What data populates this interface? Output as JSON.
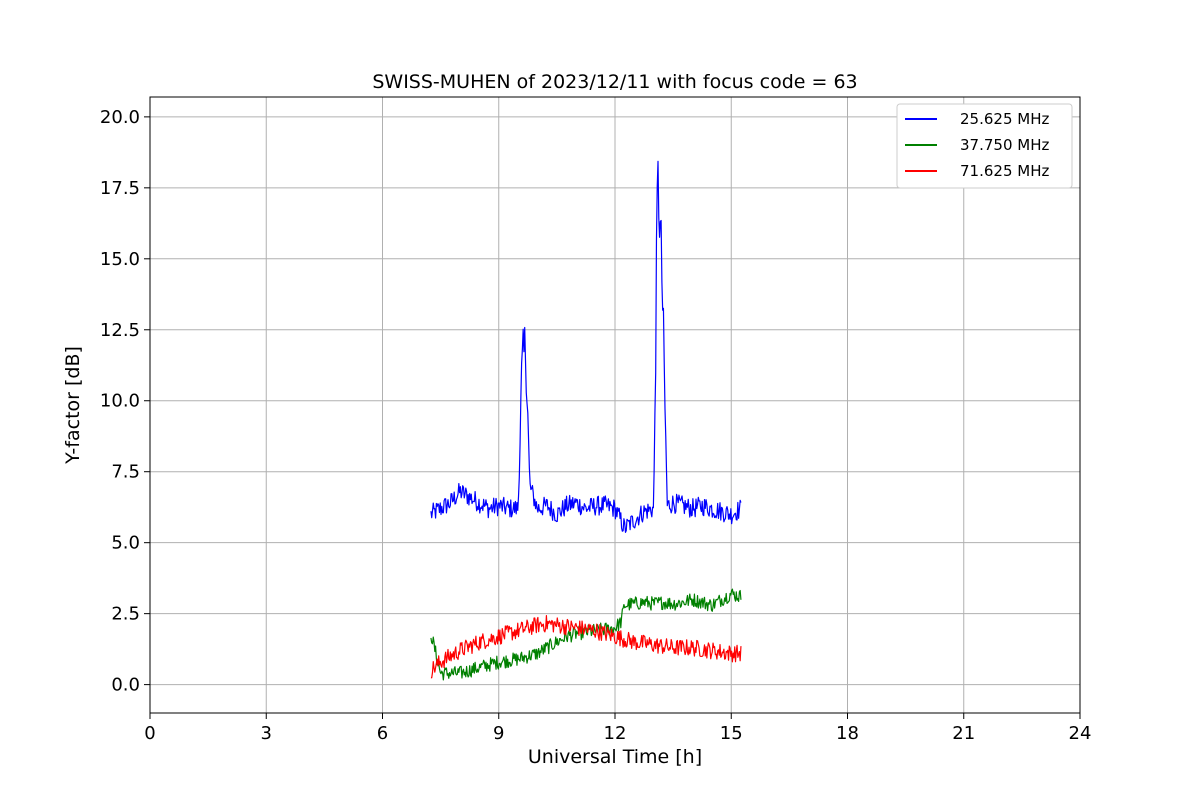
{
  "chart_data": {
    "type": "line",
    "title": "SWISS-MUHEN of 2023/12/11 with focus code = 63",
    "xlabel": "Universal Time [h]",
    "ylabel": "Y-factor [dB]",
    "xlim": [
      0,
      24
    ],
    "ylim": [
      -1.0,
      20.7
    ],
    "x_ticks": [
      0,
      3,
      6,
      9,
      12,
      15,
      18,
      21,
      24
    ],
    "x_tick_labels": [
      "0",
      "3",
      "6",
      "9",
      "12",
      "15",
      "18",
      "21",
      "24"
    ],
    "y_ticks": [
      0.0,
      2.5,
      5.0,
      7.5,
      10.0,
      12.5,
      15.0,
      17.5,
      20.0
    ],
    "y_tick_labels": [
      "0.0",
      "2.5",
      "5.0",
      "7.5",
      "10.0",
      "12.5",
      "15.0",
      "17.5",
      "20.0"
    ],
    "grid": true,
    "legend_position": "top-right",
    "series": [
      {
        "name": "25.625 MHz",
        "color": "#0000ff",
        "x": [
          7.25,
          7.5,
          7.75,
          8.0,
          8.25,
          8.5,
          8.75,
          9.0,
          9.25,
          9.5,
          9.6,
          9.7,
          9.8,
          10.0,
          10.25,
          10.5,
          10.75,
          11.0,
          11.25,
          11.5,
          11.75,
          12.0,
          12.25,
          12.5,
          12.75,
          13.0,
          13.1,
          13.2,
          13.35,
          13.5,
          13.75,
          14.0,
          14.25,
          14.5,
          14.75,
          15.0,
          15.25
        ],
        "y": [
          6.0,
          6.2,
          6.4,
          6.8,
          6.6,
          6.4,
          6.2,
          6.3,
          6.2,
          6.2,
          11.0,
          12.0,
          7.0,
          6.2,
          6.3,
          6.0,
          6.3,
          6.4,
          6.2,
          6.3,
          6.3,
          6.2,
          5.5,
          5.8,
          6.1,
          6.2,
          18.0,
          15.0,
          6.3,
          6.4,
          6.3,
          6.2,
          6.3,
          6.2,
          6.1,
          6.0,
          6.2
        ]
      },
      {
        "name": "37.750 MHz",
        "color": "#008000",
        "x": [
          7.25,
          7.5,
          7.75,
          8.0,
          8.25,
          8.5,
          8.75,
          9.0,
          9.25,
          9.5,
          9.75,
          10.0,
          10.25,
          10.5,
          10.75,
          11.0,
          11.25,
          11.5,
          11.75,
          12.0,
          12.15,
          12.25,
          12.5,
          12.75,
          13.0,
          13.25,
          13.5,
          13.75,
          14.0,
          14.25,
          14.5,
          14.75,
          15.0,
          15.25
        ],
        "y": [
          1.8,
          0.4,
          0.4,
          0.4,
          0.5,
          0.6,
          0.7,
          0.8,
          0.85,
          0.9,
          1.0,
          1.1,
          1.3,
          1.5,
          1.7,
          1.8,
          1.85,
          1.9,
          1.95,
          2.0,
          2.2,
          2.8,
          2.85,
          2.9,
          2.85,
          2.9,
          2.85,
          2.9,
          3.0,
          2.9,
          2.8,
          3.0,
          3.2,
          3.1
        ]
      },
      {
        "name": "71.625 MHz",
        "color": "#ff0000",
        "x": [
          7.25,
          7.5,
          7.75,
          8.0,
          8.25,
          8.5,
          8.75,
          9.0,
          9.25,
          9.5,
          9.75,
          10.0,
          10.25,
          10.5,
          10.75,
          11.0,
          11.25,
          11.5,
          11.75,
          12.0,
          12.25,
          12.5,
          12.75,
          13.0,
          13.25,
          13.5,
          13.75,
          14.0,
          14.25,
          14.5,
          14.75,
          15.0,
          15.25
        ],
        "y": [
          0.5,
          0.8,
          1.0,
          1.2,
          1.35,
          1.5,
          1.6,
          1.7,
          1.8,
          1.9,
          2.0,
          2.1,
          2.15,
          2.1,
          2.05,
          2.0,
          1.95,
          1.9,
          1.8,
          1.7,
          1.6,
          1.5,
          1.45,
          1.4,
          1.35,
          1.3,
          1.3,
          1.3,
          1.25,
          1.2,
          1.15,
          1.1,
          1.1
        ]
      }
    ]
  }
}
